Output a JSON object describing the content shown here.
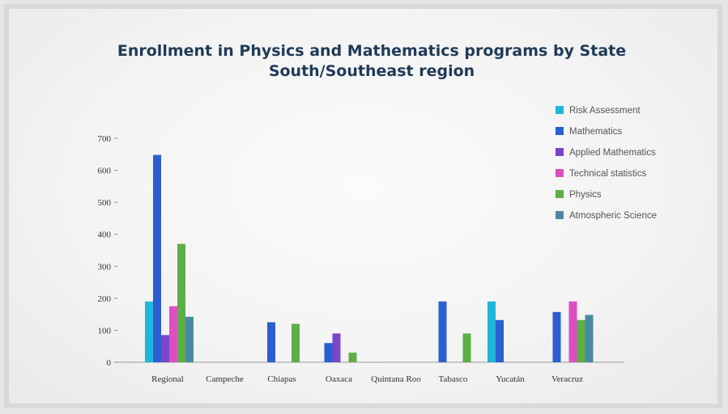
{
  "chart_data": {
    "type": "bar",
    "title": "Enrollment in Physics and Mathematics programs by State",
    "subtitle": "South/Southeast region",
    "xlabel": "",
    "ylabel": "",
    "ylim": [
      0,
      700
    ],
    "yticks": [
      0,
      100,
      200,
      300,
      400,
      500,
      600,
      700
    ],
    "grid": false,
    "legend_position": "top-right",
    "categories": [
      "Regional",
      "Campeche",
      "Chiapas",
      "Oaxaca",
      "Quintana Roo",
      "Tabasco",
      "Yucatán",
      "Veracruz"
    ],
    "series": [
      {
        "name": "Risk Assessment",
        "color": "#1fb6d9",
        "values": [
          190,
          0,
          0,
          0,
          0,
          0,
          190,
          0
        ]
      },
      {
        "name": "Mathematics",
        "color": "#2b5fd1",
        "values": [
          648,
          0,
          125,
          60,
          0,
          190,
          132,
          157
        ]
      },
      {
        "name": "Applied Mathematics",
        "color": "#7a46c9",
        "values": [
          85,
          0,
          0,
          90,
          0,
          0,
          0,
          0
        ]
      },
      {
        "name": "Technical statistics",
        "color": "#dd4fc0",
        "values": [
          175,
          0,
          0,
          0,
          0,
          0,
          0,
          190
        ]
      },
      {
        "name": "Physics",
        "color": "#5dae47",
        "values": [
          370,
          0,
          120,
          30,
          0,
          90,
          0,
          132
        ]
      },
      {
        "name": "Atmospheric Science",
        "color": "#4a8aa0",
        "values": [
          142,
          0,
          0,
          0,
          0,
          0,
          0,
          148
        ]
      }
    ]
  }
}
